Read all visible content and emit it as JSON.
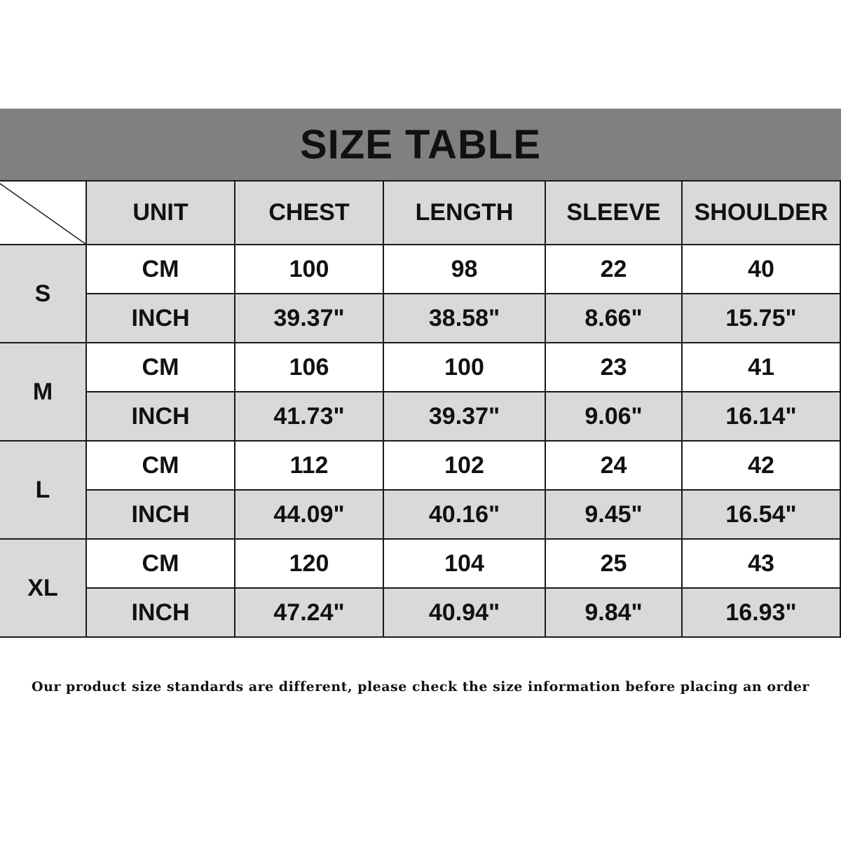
{
  "title": "SIZE TABLE",
  "headers": [
    "UNIT",
    "CHEST",
    "LENGTH",
    "SLEEVE",
    "SHOULDER"
  ],
  "sizes": [
    {
      "size": "S",
      "cm": [
        "CM",
        "100",
        "98",
        "22",
        "40"
      ],
      "inch": [
        "INCH",
        "39.37\"",
        "38.58\"",
        "8.66\"",
        "15.75\""
      ]
    },
    {
      "size": "M",
      "cm": [
        "CM",
        "106",
        "100",
        "23",
        "41"
      ],
      "inch": [
        "INCH",
        "41.73\"",
        "39.37\"",
        "9.06\"",
        "16.14\""
      ]
    },
    {
      "size": "L",
      "cm": [
        "CM",
        "112",
        "102",
        "24",
        "42"
      ],
      "inch": [
        "INCH",
        "44.09\"",
        "40.16\"",
        "9.45\"",
        "16.54\""
      ]
    },
    {
      "size": "XL",
      "cm": [
        "CM",
        "120",
        "104",
        "25",
        "43"
      ],
      "inch": [
        "INCH",
        "47.24\"",
        "40.94\"",
        "9.84\"",
        "16.93\""
      ]
    }
  ],
  "note": "Our product size standards are different, please check the size information before placing an order",
  "colors": {
    "title_band": "#808080",
    "shaded_cell": "#d9d9d9",
    "border": "#1a1a1a"
  }
}
